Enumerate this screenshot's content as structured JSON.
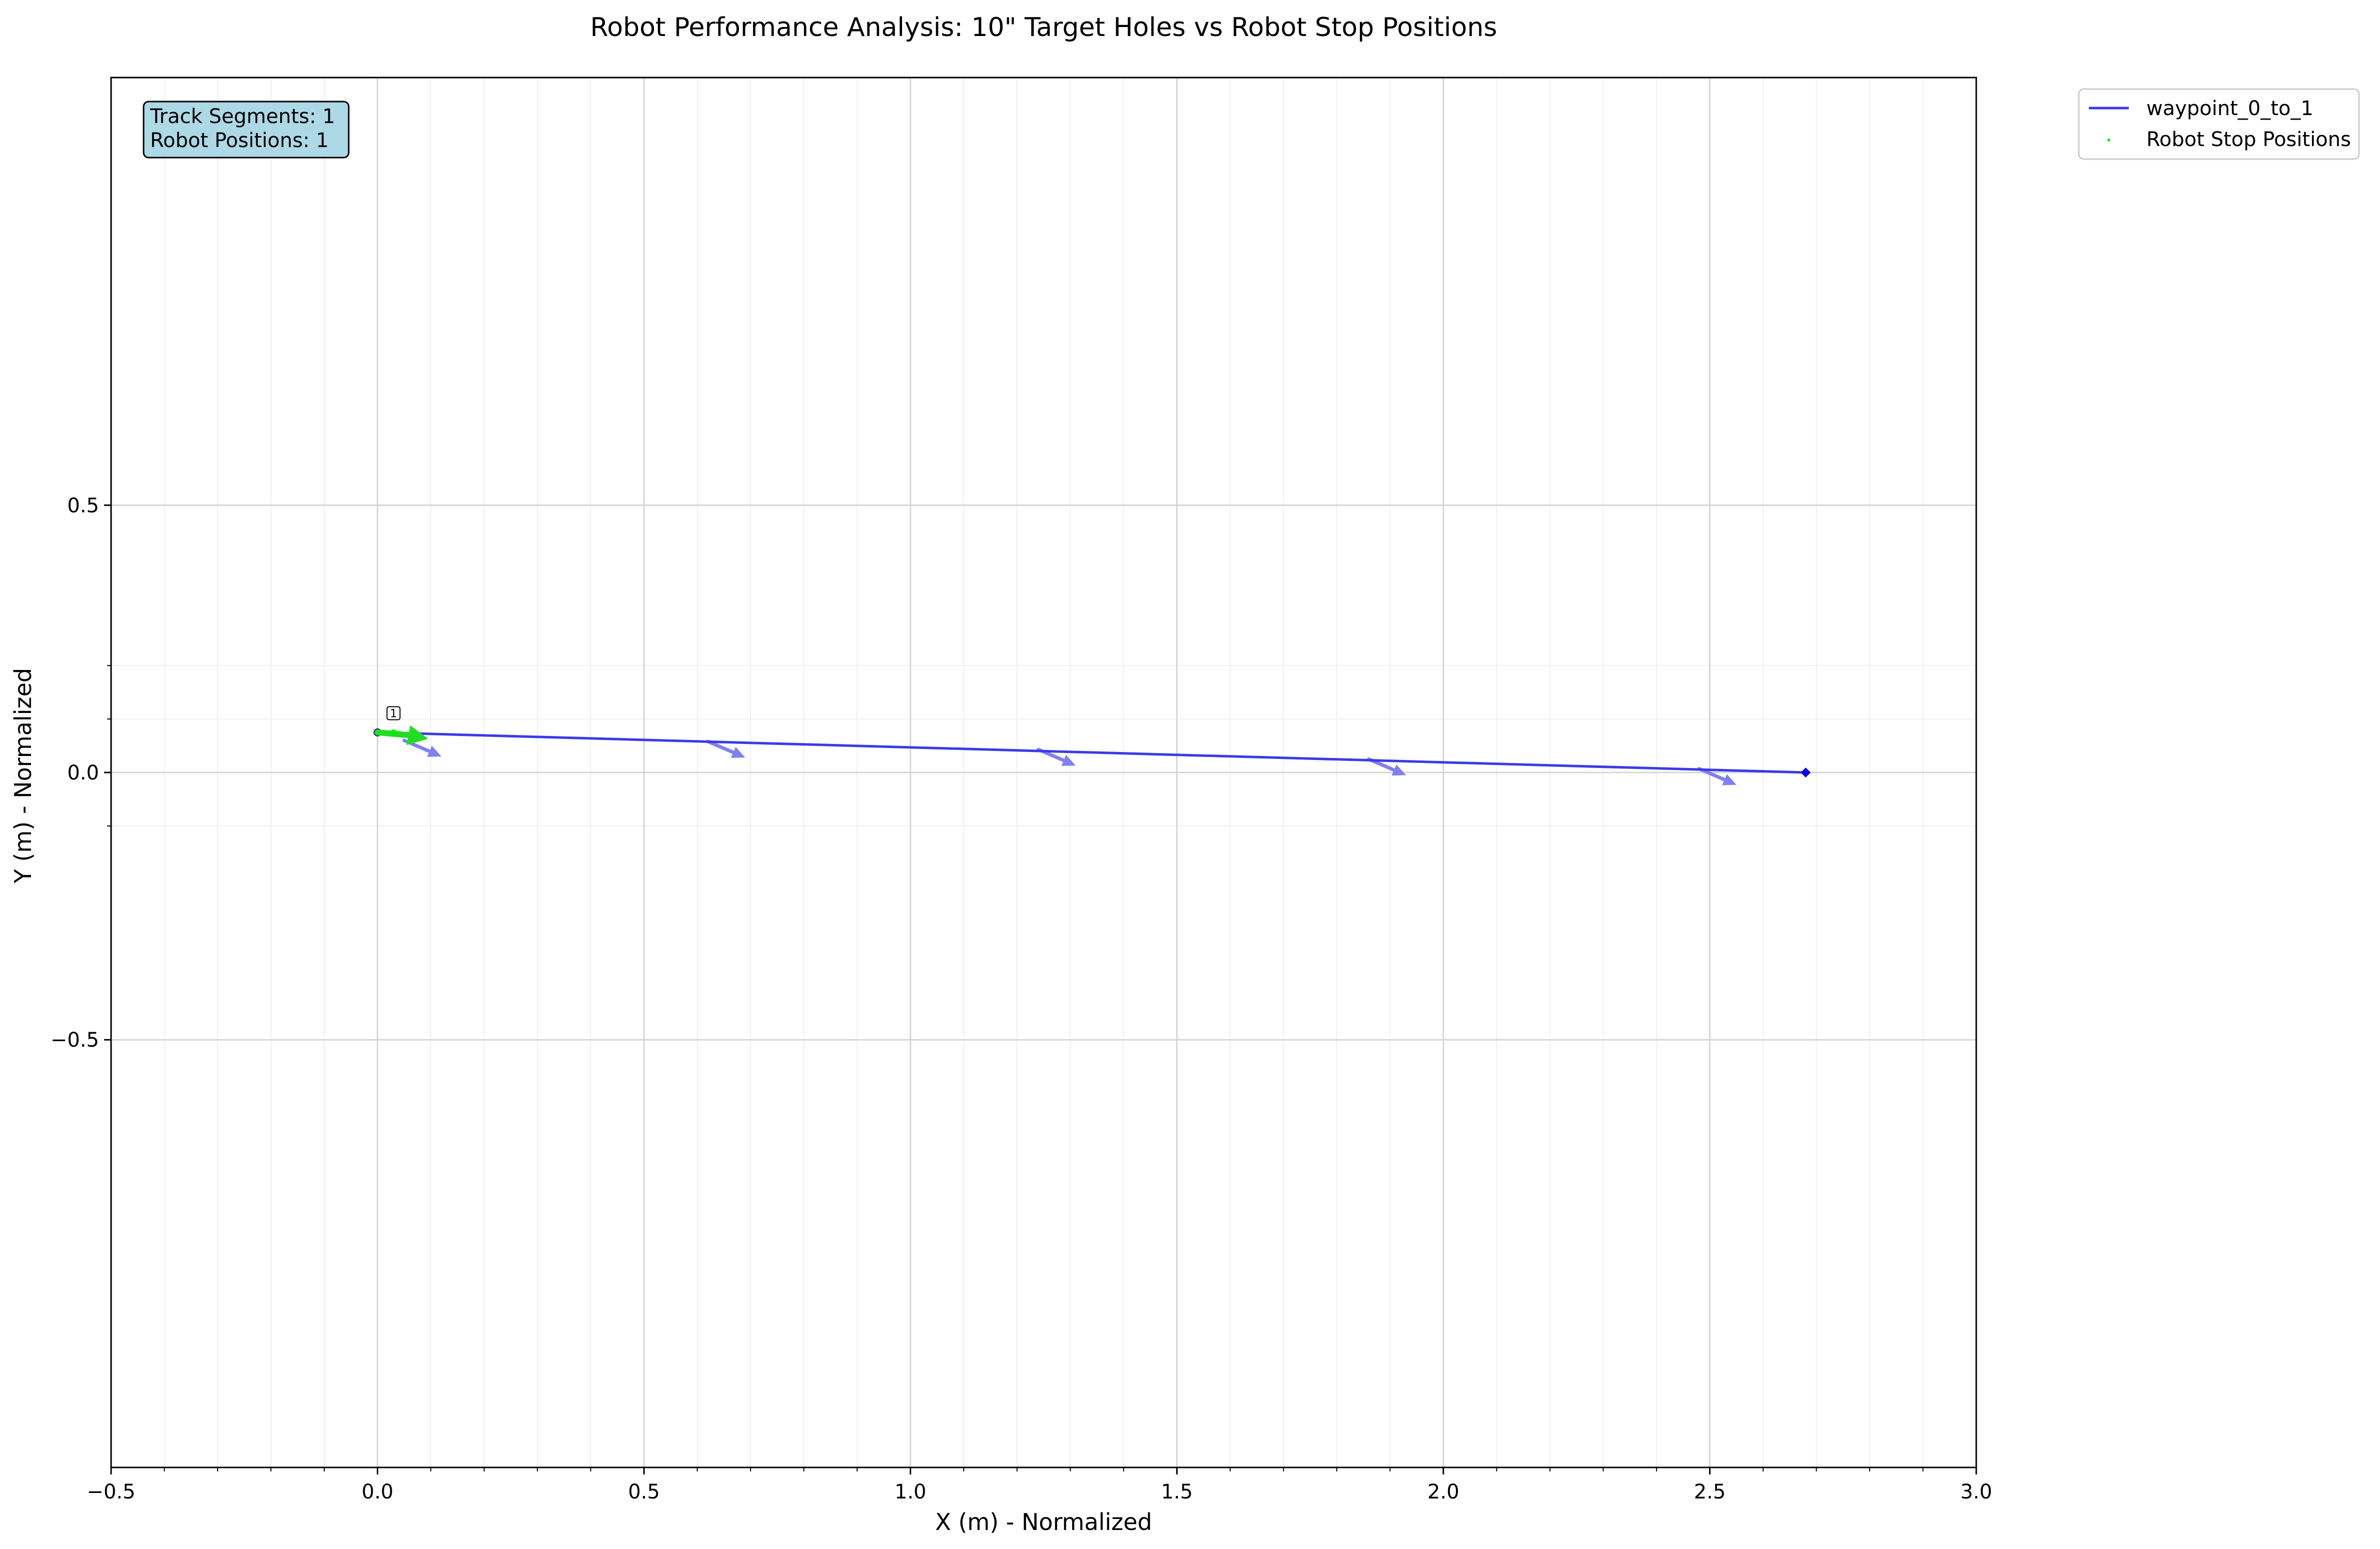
{
  "chart_data": {
    "type": "line",
    "title": "Robot Performance Analysis: 10\" Target Holes vs Robot Stop Positions",
    "xlabel": "X (m) - Normalized",
    "ylabel": "Y (m) - Normalized",
    "xlim": [
      -0.5,
      3.0
    ],
    "ylim": [
      -1.3,
      1.3
    ],
    "x_ticks": [
      -0.5,
      0.0,
      0.5,
      1.0,
      1.5,
      2.0,
      2.5,
      3.0
    ],
    "x_tick_labels": [
      "−0.5",
      "0.0",
      "0.5",
      "1.0",
      "1.5",
      "2.0",
      "2.5",
      "3.0"
    ],
    "y_ticks": [
      0.5,
      0.0,
      -0.5
    ],
    "y_tick_labels": [
      "0.5",
      "0.0",
      "−0.5"
    ],
    "x_minor_ticks": [
      -0.4,
      -0.3,
      -0.2,
      -0.1,
      0.1,
      0.2,
      0.3,
      0.4,
      0.6,
      0.7,
      0.8,
      0.9,
      1.1,
      1.2,
      1.3,
      1.4,
      1.6,
      1.7,
      1.8,
      1.9,
      2.1,
      2.2,
      2.3,
      2.4,
      2.6,
      2.7,
      2.8,
      2.9
    ],
    "y_minor_ticks": [
      0.2,
      0.1,
      -0.1
    ],
    "grid": true,
    "legend_position": "outside top-right",
    "series": [
      {
        "name": "waypoint_0_to_1",
        "type": "line",
        "color": "#3b3be8",
        "x": [
          0.0,
          2.68
        ],
        "y": [
          0.075,
          0.0
        ],
        "start_marker": [
          0.0,
          0.075
        ],
        "end_marker": [
          2.68,
          0.0
        ]
      },
      {
        "name": "Robot Stop Positions",
        "type": "scatter",
        "color": "#00ee00",
        "x": [
          0.03
        ],
        "y": [
          0.075
        ]
      }
    ],
    "direction_arrows": {
      "color": "#8080f0",
      "tail": [
        [
          0.05,
          0.06
        ],
        [
          0.62,
          0.058
        ],
        [
          1.24,
          0.043
        ],
        [
          1.86,
          0.025
        ],
        [
          2.48,
          0.007
        ]
      ],
      "vector": [
        0.07,
        -0.03
      ]
    },
    "stop_position_arrow": {
      "color": "#22dd22",
      "tail": [
        0.03,
        0.075
      ],
      "vector": [
        0.065,
        -0.012
      ]
    },
    "annotations": [
      {
        "text": "1",
        "x": 0.03,
        "y": 0.11
      }
    ],
    "info_box": {
      "lines": [
        "Track Segments: 1",
        "Robot Positions: 1"
      ],
      "background": "#add8e6"
    }
  }
}
